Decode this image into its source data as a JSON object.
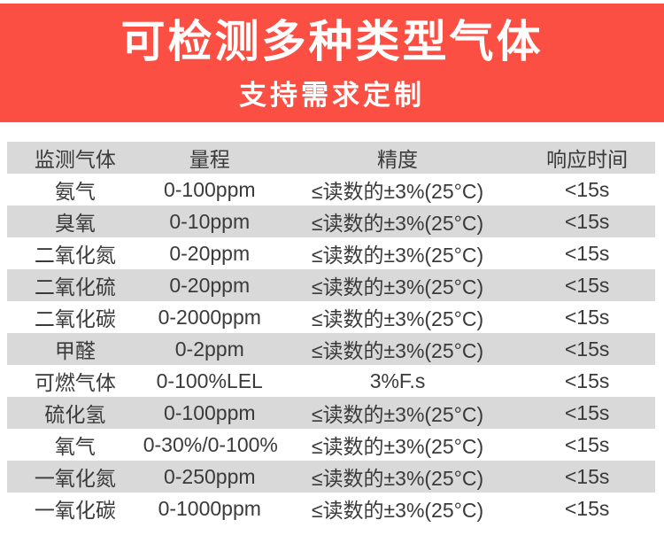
{
  "banner": {
    "title": "可检测多种类型气体",
    "subtitle": "支持需求定制",
    "background_color": "#fa4f42",
    "text_color": "#ffffff"
  },
  "table": {
    "columns": [
      "监测气体",
      "量程",
      "精度",
      "响应时间"
    ],
    "rows": [
      [
        "氨气",
        "0-100ppm",
        "≤读数的±3%(25°C)",
        "<15s"
      ],
      [
        "臭氧",
        "0-10ppm",
        "≤读数的±3%(25°C)",
        "<15s"
      ],
      [
        "二氧化氮",
        "0-20ppm",
        "≤读数的±3%(25°C)",
        "<15s"
      ],
      [
        "二氧化硫",
        "0-20ppm",
        "≤读数的±3%(25°C)",
        "<15s"
      ],
      [
        "二氧化碳",
        "0-2000ppm",
        "≤读数的±3%(25°C)",
        "<15s"
      ],
      [
        "甲醛",
        "0-2ppm",
        "≤读数的±3%(25°C)",
        "<15s"
      ],
      [
        "可燃气体",
        "0-100%LEL",
        "3%F.s",
        "<15s"
      ],
      [
        "硫化氢",
        "0-100ppm",
        "≤读数的±3%(25°C)",
        "<15s"
      ],
      [
        "氧气",
        "0-30%/0-100%",
        "≤读数的±3%(25°C)",
        "<15s"
      ],
      [
        "一氧化氮",
        "0-250ppm",
        "≤读数的±3%(25°C)",
        "<15s"
      ],
      [
        "一氧化碳",
        "0-1000ppm",
        "≤读数的±3%(25°C)",
        "<15s"
      ]
    ],
    "header_background": "#d9d9d9",
    "stripe_background": "#d9d9d9",
    "text_color": "#3a3a3a"
  }
}
